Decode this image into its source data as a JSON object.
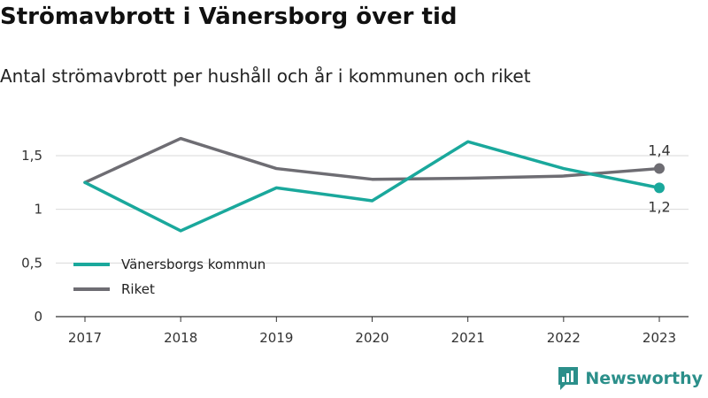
{
  "title": "Strömavbrott i Vänersborg över tid",
  "subtitle": "Antal strömavbrott per hushåll och år i kommunen och riket",
  "brand": {
    "name": "Newsworthy",
    "color": "#2b8f8a",
    "icon": "newsworthy-logo-icon"
  },
  "chart_data": {
    "type": "line",
    "x": [
      "2017",
      "2018",
      "2019",
      "2020",
      "2021",
      "2022",
      "2023"
    ],
    "ylim": [
      0,
      1.8
    ],
    "yticks": [
      {
        "value": 0,
        "label": "0"
      },
      {
        "value": 0.5,
        "label": "0,5"
      },
      {
        "value": 1,
        "label": "1"
      },
      {
        "value": 1.5,
        "label": "1,5"
      }
    ],
    "grid": true,
    "legend_position": "bottom-left",
    "series": [
      {
        "name": "Vänersborgs kommun",
        "color": "#1aa89c",
        "values": [
          1.25,
          0.8,
          1.2,
          1.08,
          1.63,
          1.38,
          1.2
        ],
        "end_label": "1,2",
        "end_label_position": "below"
      },
      {
        "name": "Riket",
        "color": "#6e6d73",
        "values": [
          1.25,
          1.66,
          1.38,
          1.28,
          1.29,
          1.31,
          1.38
        ],
        "end_label": "1,4",
        "end_label_position": "above"
      }
    ]
  }
}
